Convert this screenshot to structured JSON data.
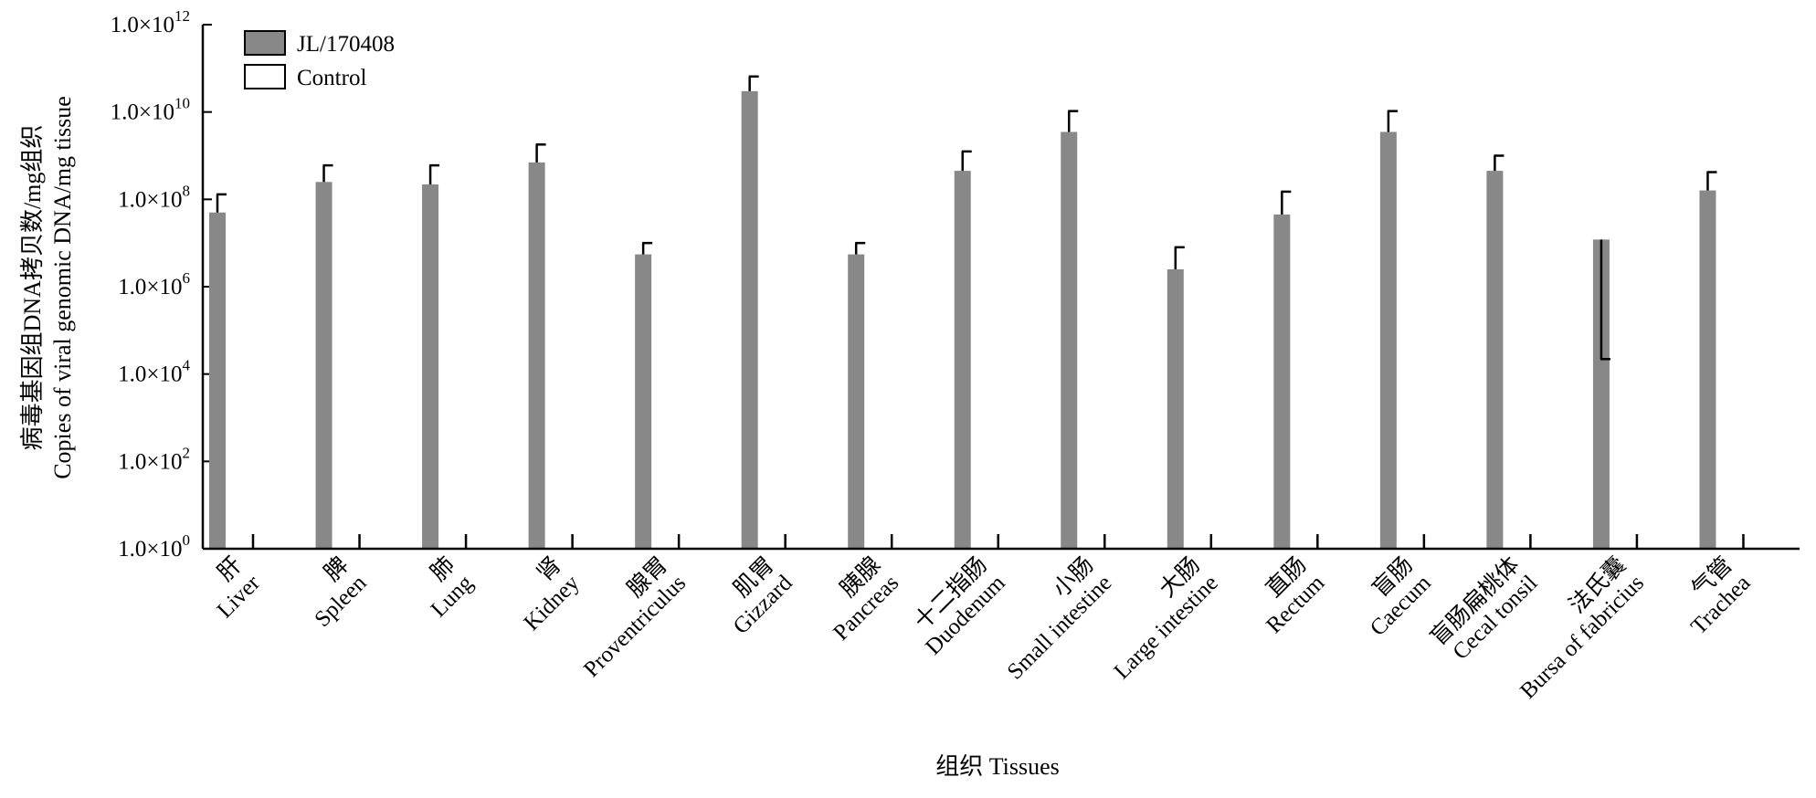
{
  "chart_data": {
    "type": "bar",
    "y_scale": "log",
    "ylim": [
      1,
      1000000000000
    ],
    "ylabel_zh": "病毒基因组DNA拷贝数/mg组织",
    "ylabel_en": "Copies of viral genomic DNA/mg tissue",
    "xlabel": "组织 Tissues",
    "y_ticks": [
      {
        "base": "1.0×10",
        "exp": "0",
        "value": 1
      },
      {
        "base": "1.0×10",
        "exp": "2",
        "value": 100
      },
      {
        "base": "1.0×10",
        "exp": "4",
        "value": 10000
      },
      {
        "base": "1.0×10",
        "exp": "6",
        "value": 1000000
      },
      {
        "base": "1.0×10",
        "exp": "8",
        "value": 100000000
      },
      {
        "base": "1.0×10",
        "exp": "10",
        "value": 10000000000
      },
      {
        "base": "1.0×10",
        "exp": "12",
        "value": 1000000000000
      }
    ],
    "categories": [
      {
        "zh": "肝",
        "en": "Liver"
      },
      {
        "zh": "脾",
        "en": "Spleen"
      },
      {
        "zh": "肺",
        "en": "Lung"
      },
      {
        "zh": "肾",
        "en": "Kidney"
      },
      {
        "zh": "腺胃",
        "en": "Proventriculus"
      },
      {
        "zh": "肌胃",
        "en": "Gizzard"
      },
      {
        "zh": "胰腺",
        "en": "Pancreas"
      },
      {
        "zh": "十二指肠",
        "en": "Duodenum"
      },
      {
        "zh": "小肠",
        "en": "Small intestine"
      },
      {
        "zh": "大肠",
        "en": "Large intestine"
      },
      {
        "zh": "直肠",
        "en": "Rectum"
      },
      {
        "zh": "盲肠",
        "en": "Caecum"
      },
      {
        "zh": "盲肠扁桃体",
        "en": "Cecal tonsil"
      },
      {
        "zh": "法氏囊",
        "en": "Bursa of fabricius"
      },
      {
        "zh": "气管",
        "en": "Trachea"
      }
    ],
    "series": [
      {
        "name": "JL/170408",
        "color": "#888888",
        "values": [
          50000000,
          250000000,
          220000000,
          700000000,
          5500000,
          30000000000,
          5500000,
          450000000,
          3500000000,
          2500000,
          45000000,
          3500000000,
          450000000,
          12000000,
          160000000
        ],
        "error_upper": [
          130000000,
          600000000,
          600000000,
          1800000000,
          10000000,
          65000000000,
          10000000,
          1250000000,
          10500000000,
          8000000,
          150000000,
          10500000000,
          1000000000,
          22000,
          420000000
        ]
      },
      {
        "name": "Control",
        "color": "#ffffff",
        "values": [
          1,
          1,
          1,
          1,
          1,
          1,
          1,
          1,
          1,
          1,
          1,
          1,
          1,
          1,
          1
        ]
      }
    ],
    "legend_position": "top-left"
  }
}
